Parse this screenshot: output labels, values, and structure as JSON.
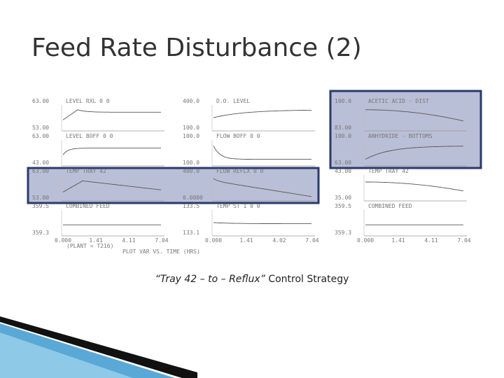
{
  "title": "Feed Rate Disturbance (2)",
  "panels": [
    {
      "label": "LEVEL RXL   0   0",
      "top": "63.00",
      "bottom": "53.00"
    },
    {
      "label": "LEVEL BOFF   0   0",
      "top": "63.00",
      "bottom": "43.00"
    },
    {
      "label": "TEMP TRAY 42",
      "top": "63.00",
      "bottom": "53.00"
    },
    {
      "label": "COMBINED FEED",
      "top": "359.5",
      "bottom": "359.3"
    },
    {
      "label": "D.O. LEVEL",
      "top": "400.0",
      "bottom": "100.0"
    },
    {
      "label": "FLOW BOFF   0   0",
      "top": "100.0",
      "bottom": "100.0"
    },
    {
      "label": "FLOW REFLX   0   0",
      "top": "400.0",
      "bottom": "0.0000"
    },
    {
      "label": "TEMP ST 1   0   0",
      "top": "133.5",
      "bottom": "133.1"
    },
    {
      "label": "ACETIC ACID - DIST",
      "top": "100.0",
      "bottom": "83.00"
    },
    {
      "label": "ANHYDRIDE - BOTTOMS",
      "top": "100.0",
      "bottom": "63.00"
    },
    {
      "label": "TEMP TRAY 42",
      "top": "43.00",
      "bottom": "35.00"
    },
    {
      "label": "COMBINED FEED",
      "top": "359.5",
      "bottom": "359.3"
    }
  ],
  "x_ticks": [
    [
      "0.000",
      "1.41",
      "4.11",
      "7.04"
    ],
    [
      "0.000",
      "1.41",
      "4.02",
      "7.04"
    ],
    [
      "0.000",
      "1.41",
      "4.11",
      "7.04"
    ]
  ],
  "footer": {
    "plant": "(PLANT = T216)",
    "axis_title": "PLOT VAR VS. TIME (HRS)"
  },
  "caption": {
    "emphasis": "“Tray 42 – to – Reflux”",
    "text": "Control Strategy"
  }
}
